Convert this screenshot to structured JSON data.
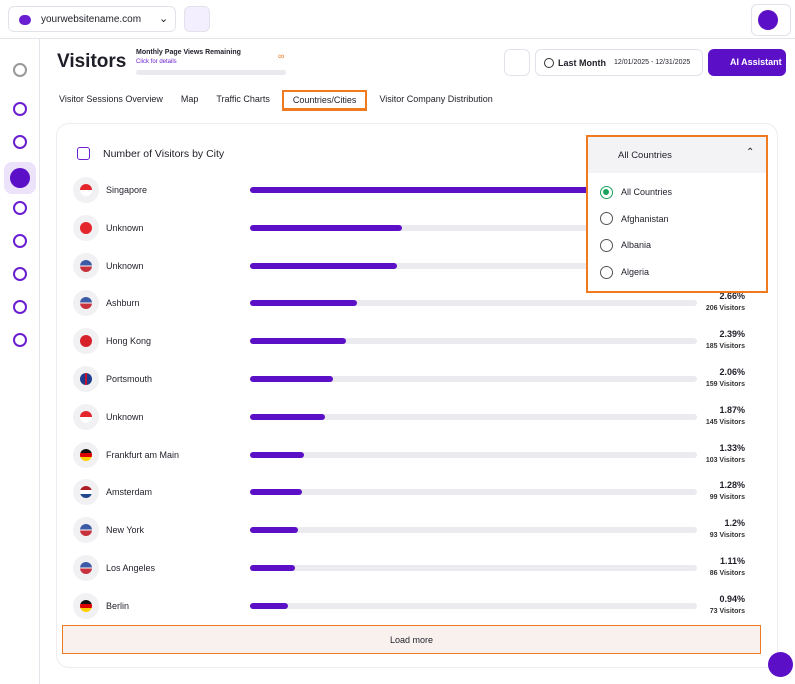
{
  "top_bar": {
    "site": "yourwebsitename.com"
  },
  "header": {
    "title": "Visitors",
    "quota_title": "Monthly Page Views Remaining",
    "quota_link": "Click for details",
    "quota_value": "∞",
    "period": "Last Month",
    "date_range": "12/01/2025 - 12/31/2025",
    "assistant": "AI Assistant"
  },
  "tabs": [
    "Visitor Sessions Overview",
    "Map",
    "Traffic Charts",
    "Countries/Cities",
    "Visitor Company Distribution"
  ],
  "active_tab": 3,
  "card": {
    "title": "Number of Visitors by City",
    "filter": "All Countries",
    "options": [
      "All Countries",
      "Afghanistan",
      "Albania",
      "Algeria"
    ],
    "selected_option": 0,
    "rows": [
      {
        "city": "Singapore",
        "percent": 11.1
      },
      {
        "city": "Unknown",
        "percent": 3.78
      },
      {
        "city": "Unknown",
        "percent": 3.66
      },
      {
        "city": "Ashburn",
        "percent": 2.66,
        "percent_label": "2.66%",
        "visitors_label": "206 Visitors"
      },
      {
        "city": "Hong Kong",
        "percent": 2.39,
        "percent_label": "2.39%",
        "visitors_label": "185 Visitors"
      },
      {
        "city": "Portsmouth",
        "percent": 2.06,
        "percent_label": "2.06%",
        "visitors_label": "159 Visitors"
      },
      {
        "city": "Unknown",
        "percent": 1.87,
        "percent_label": "1.87%",
        "visitors_label": "145 Visitors"
      },
      {
        "city": "Frankfurt am Main",
        "percent": 1.33,
        "percent_label": "1.33%",
        "visitors_label": "103 Visitors"
      },
      {
        "city": "Amsterdam",
        "percent": 1.28,
        "percent_label": "1.28%",
        "visitors_label": "99 Visitors"
      },
      {
        "city": "New York",
        "percent": 1.2,
        "percent_label": "1.2%",
        "visitors_label": "93 Visitors"
      },
      {
        "city": "Los Angeles",
        "percent": 1.11,
        "percent_label": "1.11%",
        "visitors_label": "86 Visitors"
      },
      {
        "city": "Berlin",
        "percent": 0.94,
        "percent_label": "0.94%",
        "visitors_label": "73 Visitors"
      }
    ],
    "load_more": "Load more"
  }
}
